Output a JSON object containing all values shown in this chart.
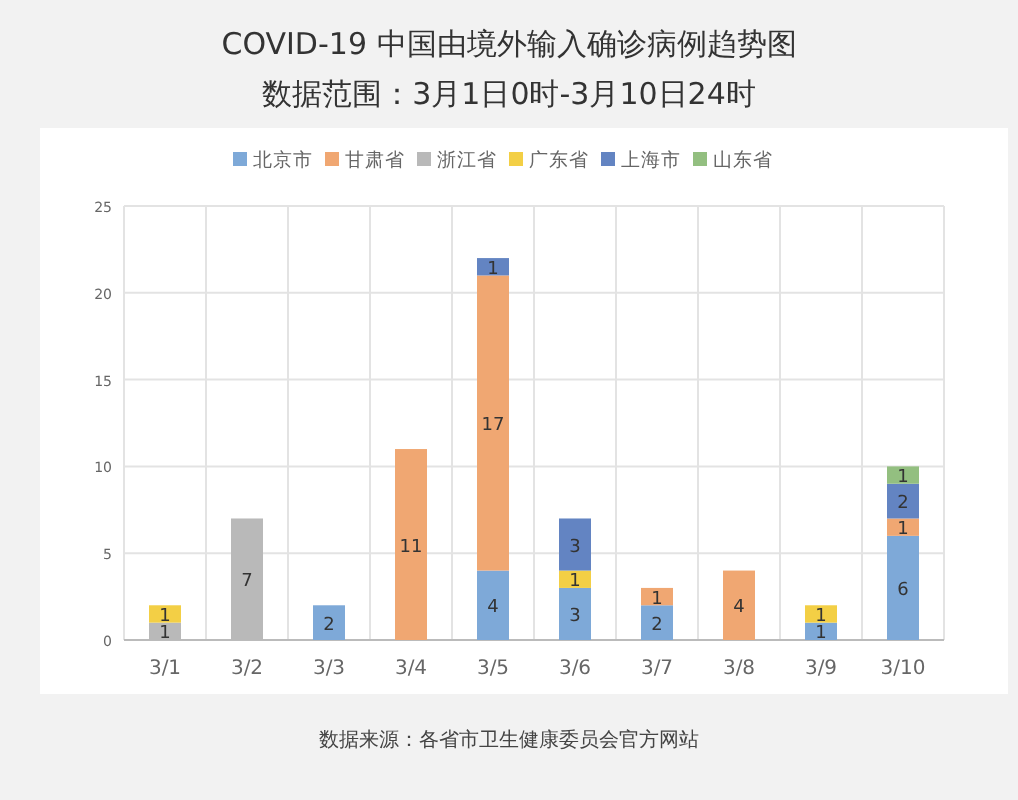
{
  "chart_data": {
    "type": "bar",
    "title": "COVID-19 中国由境外输入确诊病例趋势图",
    "subtitle": "数据范围：3月1日0时-3月10日24时",
    "categories": [
      "3/1",
      "3/2",
      "3/3",
      "3/4",
      "3/5",
      "3/6",
      "3/7",
      "3/8",
      "3/9",
      "3/10"
    ],
    "stacked": true,
    "data_labels": true,
    "legend": "top",
    "grid": true,
    "ylim": [
      0,
      25
    ],
    "yticks": [
      0,
      5,
      10,
      15,
      20,
      25
    ],
    "series": [
      {
        "name": "北京市",
        "color": "#7ea9d8",
        "values": [
          null,
          null,
          2,
          null,
          4,
          3,
          2,
          null,
          1,
          6
        ]
      },
      {
        "name": "甘肃省",
        "color": "#f0a772",
        "values": [
          null,
          null,
          null,
          11,
          17,
          null,
          1,
          4,
          null,
          1
        ]
      },
      {
        "name": "浙江省",
        "color": "#b9b9b9",
        "values": [
          1,
          7,
          null,
          null,
          null,
          null,
          null,
          null,
          null,
          null
        ]
      },
      {
        "name": "广东省",
        "color": "#f3cf45",
        "values": [
          1,
          null,
          null,
          null,
          null,
          1,
          null,
          null,
          1,
          null
        ]
      },
      {
        "name": "上海市",
        "color": "#6384c2",
        "values": [
          null,
          null,
          null,
          null,
          1,
          3,
          null,
          null,
          null,
          2
        ]
      },
      {
        "name": "山东省",
        "color": "#93bf80",
        "values": [
          null,
          null,
          null,
          null,
          null,
          null,
          null,
          null,
          null,
          1
        ]
      }
    ],
    "annotations": [
      "数据来源：各省市卫生健康委员会官方网站"
    ]
  }
}
